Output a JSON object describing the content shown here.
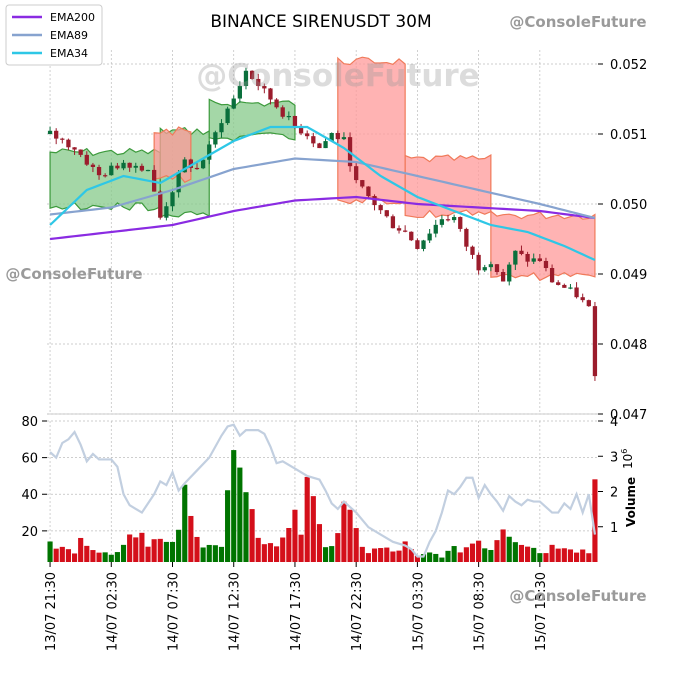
{
  "chart_data": {
    "type": "candlestick",
    "title": "BINANCE SIRENUSDT 30M",
    "watermark": "@ConsoleFuture",
    "legend": {
      "placement": "top-left",
      "entries": [
        {
          "name": "EMA200",
          "color": "#8a2be2"
        },
        {
          "name": "EMA89",
          "color": "#87a3cf"
        },
        {
          "name": "EMA34",
          "color": "#2ec7e6"
        }
      ]
    },
    "price_axis": {
      "side": "right",
      "ylim": [
        0.047,
        0.0522
      ],
      "ticks": [
        0.047,
        0.048,
        0.049,
        0.05,
        0.051,
        0.052
      ],
      "tick_labels": [
        "0.047",
        "0.048",
        "0.049",
        "0.050",
        "0.051",
        "0.052"
      ]
    },
    "volume_axis": {
      "side": "right",
      "label": "Volume",
      "exponent": "10",
      "exponent_power": "6",
      "ylim": [
        0,
        4
      ],
      "ticks": [
        1,
        2,
        3,
        4
      ],
      "tick_labels": [
        "1",
        "2",
        "3",
        "4"
      ]
    },
    "indicator_axis": {
      "side": "left",
      "ylim": [
        3,
        80
      ],
      "ticks": [
        20,
        40,
        60,
        80
      ],
      "tick_labels": [
        "20",
        "40",
        "60",
        "80"
      ]
    },
    "x_axis": {
      "tick_labels": [
        "13/07 21:30",
        "14/07 02:30",
        "14/07 07:30",
        "14/07 12:30",
        "14/07 17:30",
        "14/07 22:30",
        "15/07 03:30",
        "15/07 08:30",
        "15/07 13:30"
      ],
      "tick_index": [
        0,
        10,
        20,
        30,
        40,
        50,
        60,
        70,
        80
      ],
      "bar_count": 90
    },
    "grid": true,
    "colors": {
      "up": "#007400",
      "down": "#d40f1a",
      "fill_up": "#86c98a",
      "fill_down": "#ff9a9a",
      "indicator": "#c2cfe0"
    },
    "ohlc_anchors": [
      [
        0,
        0.051
      ],
      [
        4,
        0.0508
      ],
      [
        8,
        0.0504
      ],
      [
        12,
        0.0506
      ],
      [
        16,
        0.0505
      ],
      [
        18,
        0.0498
      ],
      [
        20,
        0.0502
      ],
      [
        22,
        0.0506
      ],
      [
        24,
        0.0505
      ],
      [
        26,
        0.0508
      ],
      [
        28,
        0.0512
      ],
      [
        30,
        0.0515
      ],
      [
        32,
        0.0519
      ],
      [
        34,
        0.0517
      ],
      [
        36,
        0.0515
      ],
      [
        38,
        0.0513
      ],
      [
        40,
        0.0511
      ],
      [
        42,
        0.051
      ],
      [
        44,
        0.0508
      ],
      [
        46,
        0.051
      ],
      [
        48,
        0.0509
      ],
      [
        50,
        0.0503
      ],
      [
        52,
        0.0501
      ],
      [
        54,
        0.0499
      ],
      [
        56,
        0.0497
      ],
      [
        58,
        0.0496
      ],
      [
        60,
        0.0494
      ],
      [
        62,
        0.0496
      ],
      [
        64,
        0.0498
      ],
      [
        66,
        0.0498
      ],
      [
        68,
        0.0494
      ],
      [
        70,
        0.0491
      ],
      [
        72,
        0.0492
      ],
      [
        74,
        0.0489
      ],
      [
        76,
        0.0493
      ],
      [
        78,
        0.0492
      ],
      [
        80,
        0.0492
      ],
      [
        82,
        0.0489
      ],
      [
        84,
        0.0488
      ],
      [
        86,
        0.0487
      ],
      [
        88,
        0.0485
      ],
      [
        89,
        0.0476
      ]
    ],
    "ema200": [
      [
        0,
        0.0495
      ],
      [
        20,
        0.0497
      ],
      [
        30,
        0.0499
      ],
      [
        40,
        0.05005
      ],
      [
        50,
        0.0501
      ],
      [
        60,
        0.05
      ],
      [
        70,
        0.04995
      ],
      [
        80,
        0.0499
      ],
      [
        89,
        0.0498
      ]
    ],
    "ema89": [
      [
        0,
        0.04985
      ],
      [
        10,
        0.04995
      ],
      [
        20,
        0.0502
      ],
      [
        30,
        0.0505
      ],
      [
        40,
        0.05065
      ],
      [
        50,
        0.0506
      ],
      [
        60,
        0.0504
      ],
      [
        70,
        0.0502
      ],
      [
        80,
        0.05
      ],
      [
        89,
        0.0498
      ]
    ],
    "ema34": [
      [
        0,
        0.0497
      ],
      [
        6,
        0.0502
      ],
      [
        12,
        0.0504
      ],
      [
        18,
        0.0503
      ],
      [
        24,
        0.0506
      ],
      [
        30,
        0.0509
      ],
      [
        36,
        0.0511
      ],
      [
        42,
        0.0511
      ],
      [
        48,
        0.0508
      ],
      [
        54,
        0.0504
      ],
      [
        60,
        0.0501
      ],
      [
        66,
        0.0499
      ],
      [
        72,
        0.0497
      ],
      [
        78,
        0.0496
      ],
      [
        84,
        0.0494
      ],
      [
        89,
        0.0492
      ]
    ],
    "volume_anchors": [
      [
        0,
        0.55
      ],
      [
        2,
        0.7
      ],
      [
        4,
        0.3
      ],
      [
        6,
        0.75
      ],
      [
        8,
        0.35
      ],
      [
        10,
        0.2
      ],
      [
        14,
        1.05
      ],
      [
        16,
        0.7
      ],
      [
        18,
        0.6
      ],
      [
        20,
        0.45
      ],
      [
        22,
        1.8
      ],
      [
        24,
        0.65
      ],
      [
        26,
        0.7
      ],
      [
        28,
        0.45
      ],
      [
        30,
        3.15
      ],
      [
        32,
        1.55
      ],
      [
        34,
        0.9
      ],
      [
        36,
        0.5
      ],
      [
        38,
        0.6
      ],
      [
        40,
        1.7
      ],
      [
        41,
        1.0
      ],
      [
        42,
        2.95
      ],
      [
        43,
        1.5
      ],
      [
        44,
        0.85
      ],
      [
        46,
        0.55
      ],
      [
        48,
        1.45
      ],
      [
        50,
        0.85
      ],
      [
        52,
        0.3
      ],
      [
        54,
        0.4
      ],
      [
        56,
        0.3
      ],
      [
        58,
        0.5
      ],
      [
        60,
        0.15
      ],
      [
        62,
        0.25
      ],
      [
        64,
        0.2
      ],
      [
        66,
        0.35
      ],
      [
        68,
        0.45
      ],
      [
        70,
        0.7
      ],
      [
        72,
        0.4
      ],
      [
        74,
        1.2
      ],
      [
        76,
        0.8
      ],
      [
        78,
        0.55
      ],
      [
        80,
        0.3
      ],
      [
        82,
        0.45
      ],
      [
        84,
        0.6
      ],
      [
        86,
        0.4
      ],
      [
        88,
        0.3
      ],
      [
        89,
        2.45
      ]
    ],
    "indicator_line": [
      [
        0,
        63
      ],
      [
        1,
        60
      ],
      [
        2,
        68
      ],
      [
        3,
        70
      ],
      [
        4,
        74
      ],
      [
        5,
        67
      ],
      [
        6,
        58
      ],
      [
        7,
        62
      ],
      [
        8,
        59
      ],
      [
        10,
        59
      ],
      [
        11,
        55
      ],
      [
        12,
        40
      ],
      [
        13,
        34
      ],
      [
        14,
        32
      ],
      [
        15,
        30
      ],
      [
        16,
        35
      ],
      [
        17,
        40
      ],
      [
        18,
        47
      ],
      [
        19,
        45
      ],
      [
        20,
        52
      ],
      [
        21,
        42
      ],
      [
        22,
        46
      ],
      [
        24,
        53
      ],
      [
        26,
        60
      ],
      [
        28,
        72
      ],
      [
        29,
        77
      ],
      [
        30,
        78
      ],
      [
        31,
        72
      ],
      [
        32,
        75
      ],
      [
        34,
        75
      ],
      [
        35,
        73
      ],
      [
        36,
        66
      ],
      [
        37,
        57
      ],
      [
        38,
        58
      ],
      [
        40,
        54
      ],
      [
        42,
        50
      ],
      [
        44,
        48
      ],
      [
        45,
        42
      ],
      [
        46,
        35
      ],
      [
        47,
        32
      ],
      [
        48,
        36
      ],
      [
        50,
        30
      ],
      [
        52,
        22
      ],
      [
        54,
        18
      ],
      [
        56,
        14
      ],
      [
        58,
        12
      ],
      [
        59,
        10
      ],
      [
        60,
        6
      ],
      [
        61,
        6
      ],
      [
        62,
        14
      ],
      [
        63,
        20
      ],
      [
        64,
        30
      ],
      [
        65,
        42
      ],
      [
        66,
        40
      ],
      [
        67,
        44
      ],
      [
        68,
        49
      ],
      [
        69,
        49
      ],
      [
        70,
        38
      ],
      [
        71,
        45
      ],
      [
        72,
        40
      ],
      [
        73,
        36
      ],
      [
        74,
        31
      ],
      [
        75,
        39
      ],
      [
        76,
        36
      ],
      [
        77,
        34
      ],
      [
        78,
        37
      ],
      [
        79,
        36
      ],
      [
        80,
        36
      ],
      [
        81,
        33
      ],
      [
        82,
        30
      ],
      [
        83,
        30
      ],
      [
        84,
        35
      ],
      [
        85,
        32
      ],
      [
        86,
        40
      ],
      [
        87,
        30
      ],
      [
        88,
        40
      ],
      [
        89,
        18
      ]
    ],
    "cloud_green": [
      [
        0,
        18,
        0.0499,
        0.0508
      ],
      [
        18,
        26,
        0.0498,
        0.0511
      ],
      [
        26,
        40,
        0.0509,
        0.0515
      ]
    ],
    "cloud_red": [
      [
        17,
        23,
        0.0503,
        0.0511
      ],
      [
        47,
        58,
        0.05,
        0.0521
      ],
      [
        58,
        72,
        0.0498,
        0.0507
      ],
      [
        72,
        89,
        0.0489,
        0.0499
      ]
    ]
  }
}
